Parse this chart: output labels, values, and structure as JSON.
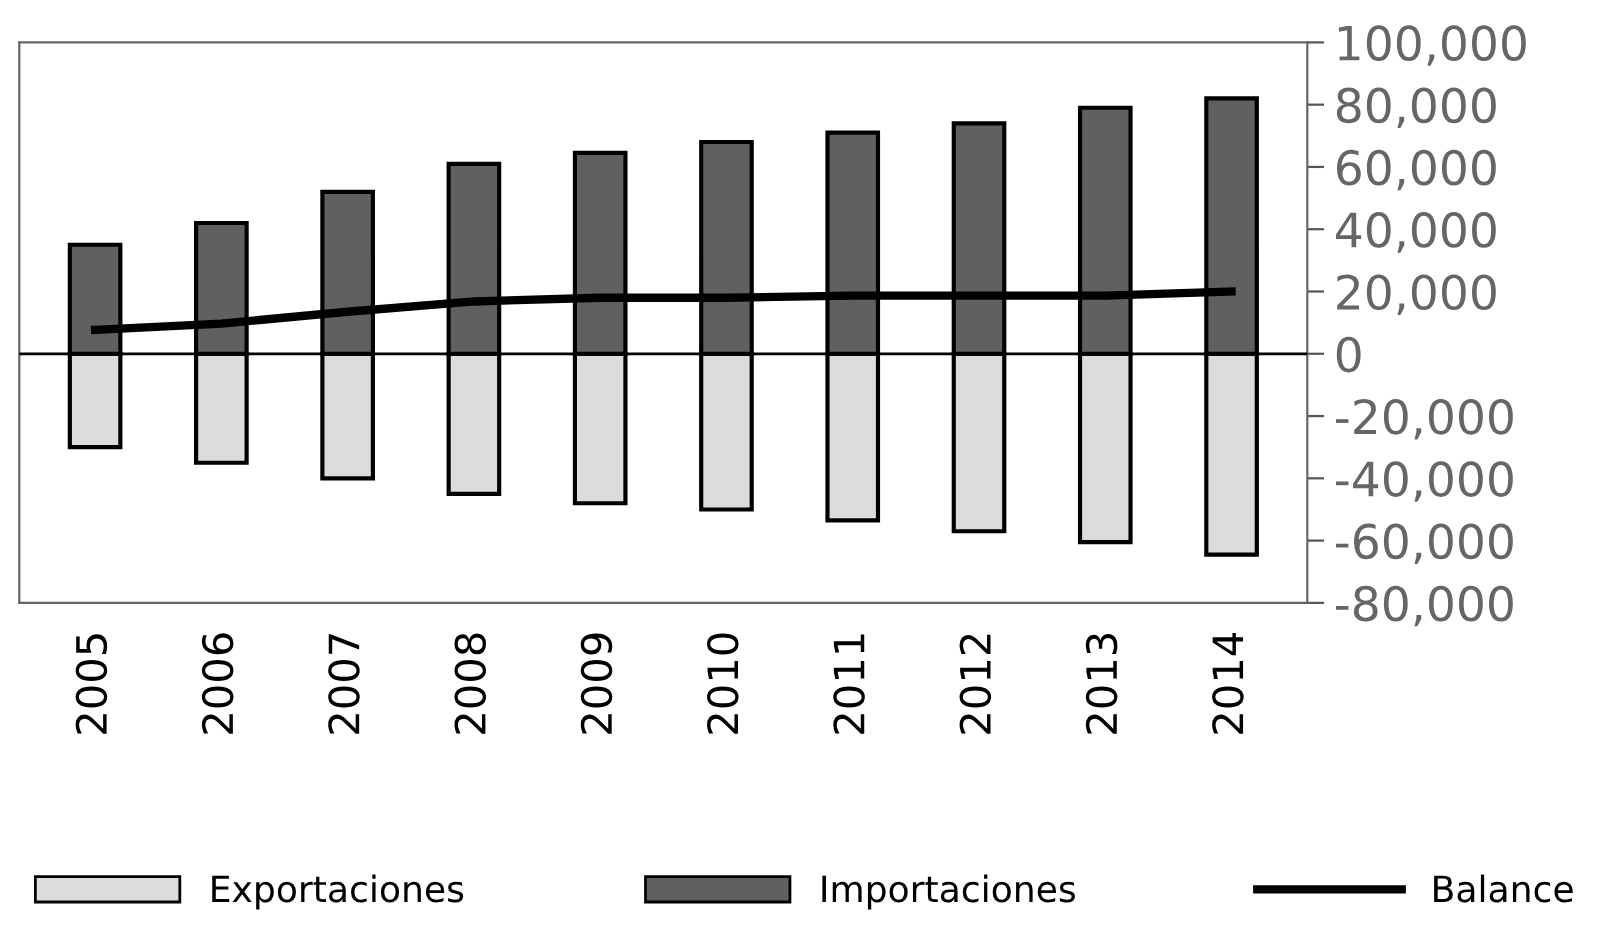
{
  "chart_data": {
    "type": "bar",
    "categories": [
      "2005",
      "2006",
      "2007",
      "2008",
      "2009",
      "2010",
      "2011",
      "2012",
      "2013",
      "2014"
    ],
    "series": [
      {
        "name": "Exportaciones",
        "color": "#dcdcdc",
        "values": [
          -30000,
          -35000,
          -40000,
          -45000,
          -48000,
          -50000,
          -53500,
          -57000,
          -60500,
          -64500
        ]
      },
      {
        "name": "Importaciones",
        "color": "#606060",
        "values": [
          35000,
          42000,
          52000,
          61000,
          64500,
          68000,
          71000,
          74000,
          79000,
          82000
        ]
      },
      {
        "name": "Balance",
        "type": "line",
        "color": "#000000",
        "values": [
          7700,
          9700,
          13500,
          16800,
          18000,
          18000,
          18700,
          18700,
          18700,
          20000
        ]
      }
    ],
    "ylim": [
      -80000,
      100000
    ],
    "stacked": true,
    "yticks": [
      {
        "value": 100000,
        "label": "100,000"
      },
      {
        "value": 80000,
        "label": "80,000"
      },
      {
        "value": 60000,
        "label": "60,000"
      },
      {
        "value": 40000,
        "label": "40,000"
      },
      {
        "value": 20000,
        "label": "20,000"
      },
      0,
      {
        "value": -20000,
        "label": "-20,000"
      },
      {
        "value": -40000,
        "label": "-40,000"
      },
      {
        "value": -60000,
        "label": "-60,000"
      },
      {
        "value": -80000,
        "label": "-80,000"
      }
    ],
    "ref_lines": [
      {
        "axis": "y",
        "value": 0,
        "color": "#000000"
      }
    ],
    "grid": false,
    "legend": "bottom"
  }
}
